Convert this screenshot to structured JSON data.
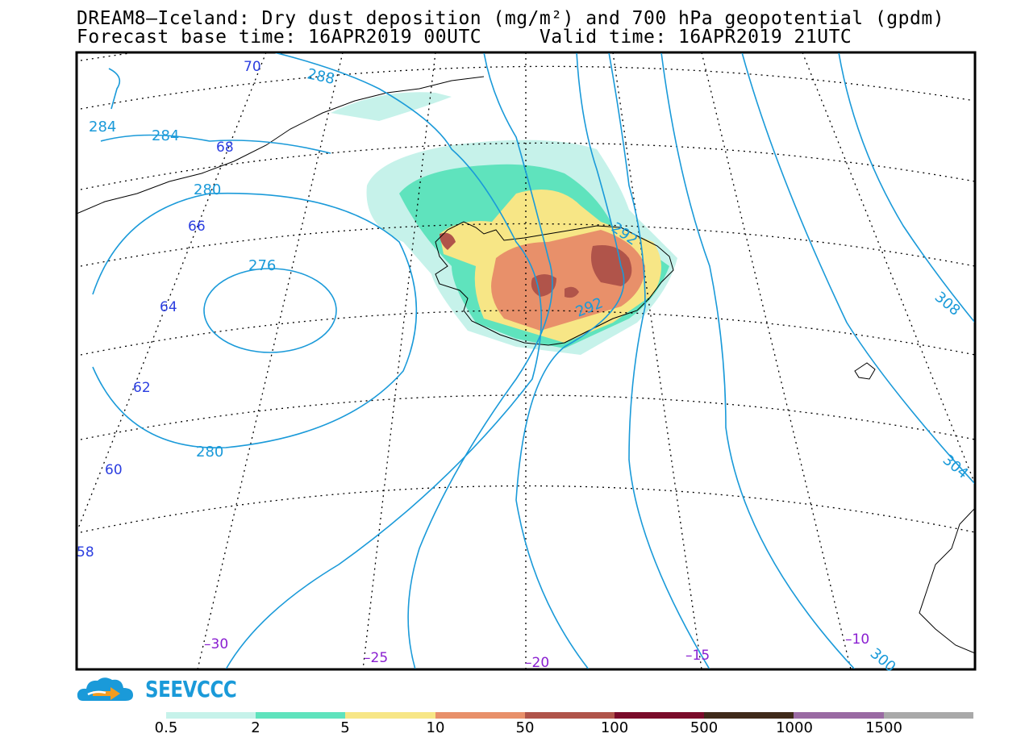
{
  "title": {
    "line1": "DREAM8–Iceland: Dry dust deposition (mg/m²) and 700 hPa geopotential (gpdm)",
    "line2": "Forecast base time: 16APR2019 00UTC     Valid time: 16APR2019 21UTC"
  },
  "brand": {
    "name": "SEEVCCC"
  },
  "colors": {
    "contour": "#1a9ad9",
    "lat_label": "#2b3ee0",
    "lon_label": "#8a1fd1"
  },
  "latitude_labels": [
    "70",
    "68",
    "66",
    "64",
    "62",
    "60",
    "58"
  ],
  "longitude_labels": [
    "–30",
    "–25",
    "–20",
    "–15",
    "–10"
  ],
  "contour_labels": [
    "288",
    "284",
    "284",
    "280",
    "276",
    "280",
    "292",
    "292",
    "308",
    "304",
    "300"
  ],
  "legend": {
    "colors": [
      "#c6f2ea",
      "#5fe3bd",
      "#f7e686",
      "#e8906a",
      "#b0544a",
      "#7a0b2a",
      "#3f2a1a",
      "#9a6aa3",
      "#a9a9a9"
    ],
    "labels": [
      "0.5",
      "2",
      "5",
      "10",
      "50",
      "100",
      "500",
      "1000",
      "1500"
    ]
  }
}
